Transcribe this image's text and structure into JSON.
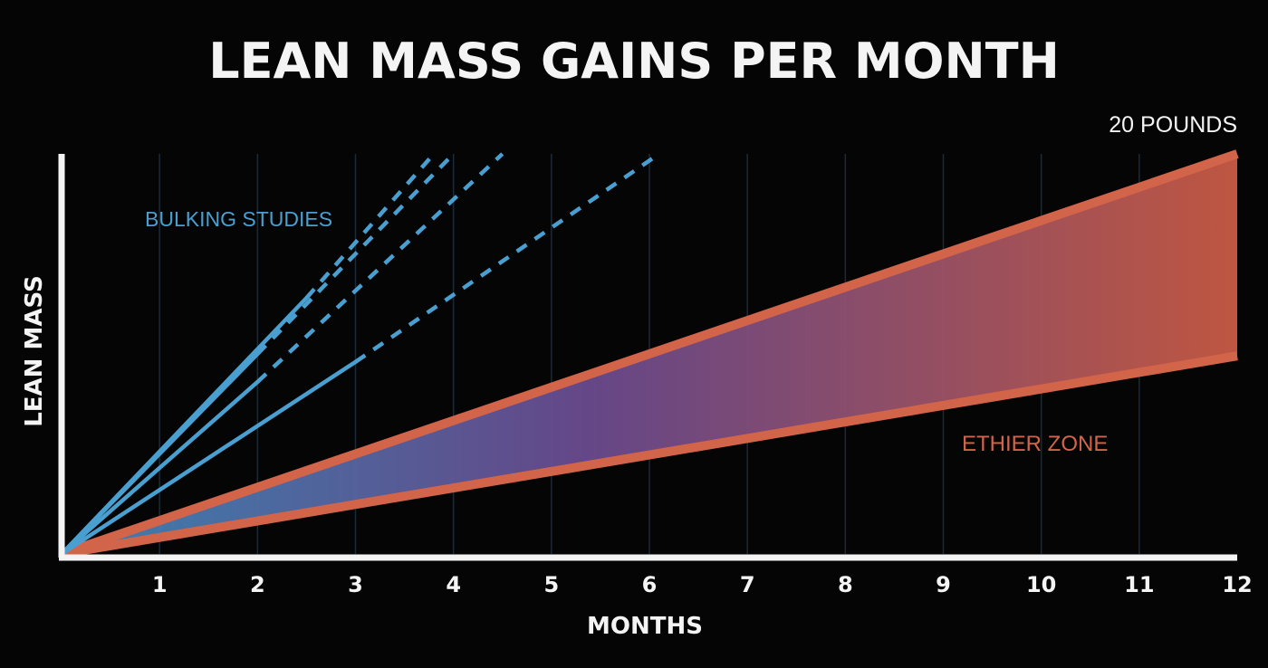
{
  "chart_data": {
    "type": "line",
    "title": "LEAN MASS GAINS PER MONTH",
    "xlabel": "MONTHS",
    "ylabel": "LEAN MASS",
    "xlim": [
      0,
      12
    ],
    "ylim": [
      0,
      20
    ],
    "x_ticks": [
      "1",
      "2",
      "3",
      "4",
      "5",
      "6",
      "7",
      "8",
      "9",
      "10",
      "11",
      "12"
    ],
    "grid": true,
    "y_max_label": "20 POUNDS",
    "colors": {
      "background": "#050505",
      "axis": "#f4f4f4",
      "grid": "#1c2a36",
      "bulking": "#4a9fd1",
      "zone_edge": "#d2644a",
      "zone_fill_start": "#3f86b8",
      "zone_fill_mid": "#6a4a8e",
      "zone_fill_end": "#c85a44",
      "bulking_label": "#4a9fd1",
      "zone_label": "#d2644a"
    },
    "series": [
      {
        "kind": "bulking",
        "solid": [
          [
            0,
            0
          ],
          [
            2.5,
            12.8
          ]
        ],
        "dashed": [
          [
            2.5,
            12.8
          ],
          [
            3.8,
            20.0
          ]
        ]
      },
      {
        "kind": "bulking",
        "solid": [
          [
            0,
            0
          ],
          [
            2.0,
            10.0
          ]
        ],
        "dashed": [
          [
            2.0,
            10.0
          ],
          [
            4.0,
            20.0
          ]
        ]
      },
      {
        "kind": "bulking",
        "solid": [
          [
            0,
            0
          ],
          [
            2.0,
            8.6
          ]
        ],
        "dashed": [
          [
            2.0,
            8.6
          ],
          [
            4.5,
            20.0
          ]
        ]
      },
      {
        "kind": "bulking",
        "solid": [
          [
            0,
            0
          ],
          [
            3.0,
            9.6
          ]
        ],
        "dashed": [
          [
            3.0,
            9.6
          ],
          [
            6.1,
            20.0
          ]
        ]
      }
    ],
    "zone": {
      "upper": [
        [
          0,
          0
        ],
        [
          12,
          20.0
        ]
      ],
      "lower": [
        [
          0,
          0
        ],
        [
          12,
          9.9
        ]
      ]
    },
    "annotations": {
      "bulking_label": "BULKING STUDIES",
      "zone_label": "ETHIER ZONE"
    }
  }
}
